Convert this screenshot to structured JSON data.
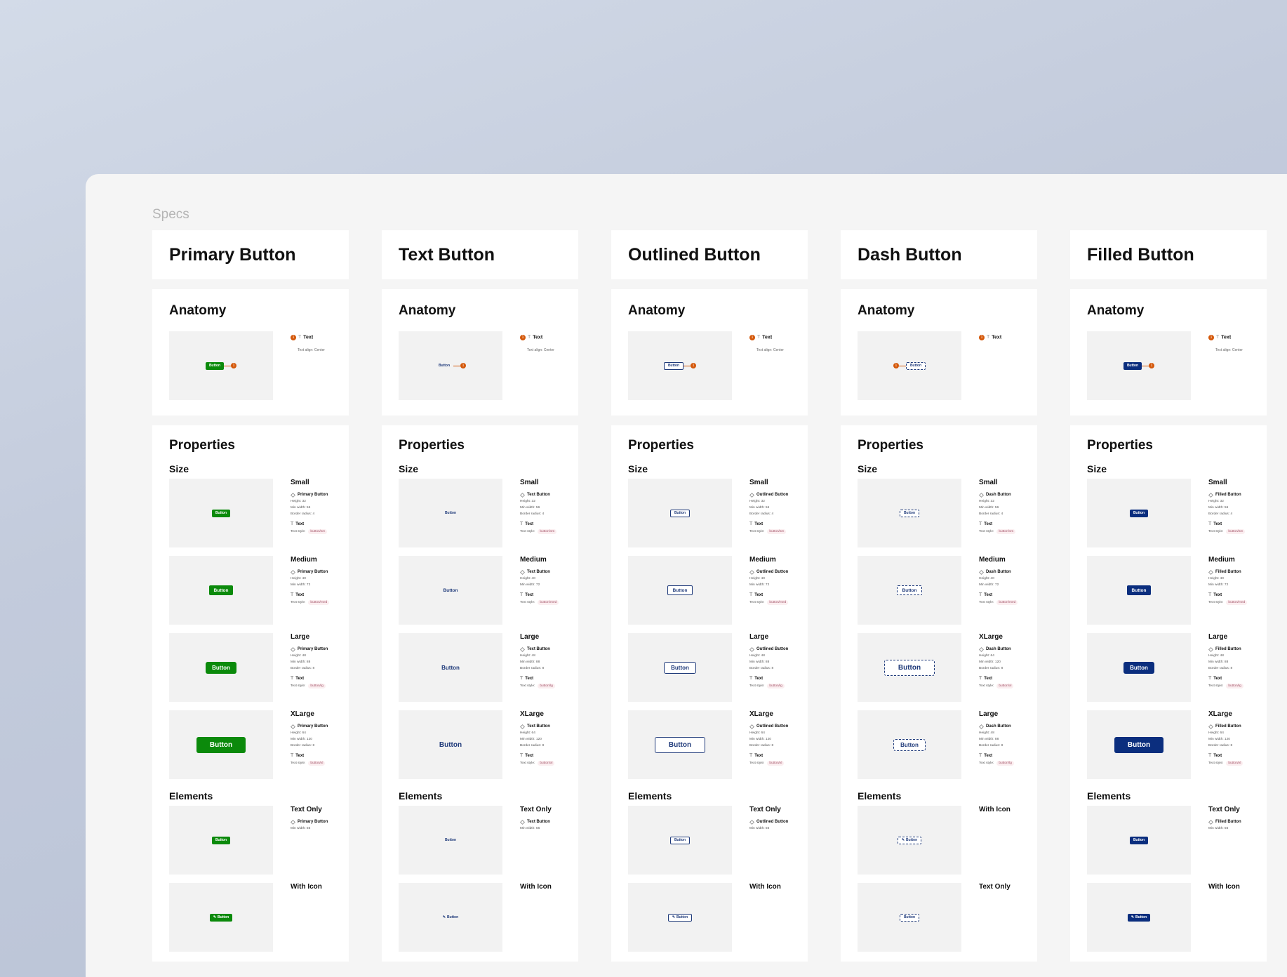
{
  "page": {
    "section_label": "Specs"
  },
  "colors": {
    "primary": "#0b8a0b",
    "navy": "#0b2e7e",
    "marker": "#d4580a",
    "panel": "#f5f5f5"
  },
  "labels": {
    "anatomy": "Anatomy",
    "properties": "Properties",
    "size": "Size",
    "elements": "Elements",
    "text": "Text",
    "text_style": "Text style:",
    "button": "Button"
  },
  "columns": [
    {
      "title": "Primary Button",
      "variant": "primary",
      "anatomy": {
        "marker": "1",
        "label": "Text",
        "sub": "Text align: Center",
        "marker_side": "right"
      },
      "sizes": [
        {
          "name": "Small",
          "size": "sm",
          "component": "Primary Button",
          "specs": [
            "Height: 32",
            "Min width: 56",
            "Border radius: 4"
          ],
          "style": "button/sm"
        },
        {
          "name": "Medium",
          "size": "med",
          "component": "Primary Button",
          "specs": [
            "Height: 40",
            "Min width: 72"
          ],
          "style": "button/med"
        },
        {
          "name": "Large",
          "size": "lg",
          "component": "Primary Button",
          "specs": [
            "Height: 48",
            "Min width: 88",
            "Border radius: 8"
          ],
          "style": "button/lg"
        },
        {
          "name": "XLarge",
          "size": "xl",
          "component": "Primary Button",
          "specs": [
            "Height: 64",
            "Min width: 120",
            "Border radius: 8"
          ],
          "style": "button/xl"
        }
      ],
      "elements": [
        {
          "name": "Text Only",
          "icon": false,
          "component": "Primary Button",
          "specs": [
            "Min width: 56"
          ]
        },
        {
          "name": "With Icon",
          "icon": true
        }
      ]
    },
    {
      "title": "Text Button",
      "variant": "text",
      "anatomy": {
        "marker": "1",
        "label": "Text",
        "sub": "Text align: Center",
        "marker_side": "right"
      },
      "sizes": [
        {
          "name": "Small",
          "size": "sm",
          "component": "Text Button",
          "specs": [
            "Height: 32",
            "Min width: 56",
            "Border radius: 4"
          ],
          "style": "button/sm"
        },
        {
          "name": "Medium",
          "size": "med",
          "component": "Text Button",
          "specs": [
            "Height: 40",
            "Min width: 72"
          ],
          "style": "button/med"
        },
        {
          "name": "Large",
          "size": "lg",
          "component": "Text Button",
          "specs": [
            "Height: 48",
            "Min width: 88",
            "Border radius: 8"
          ],
          "style": "button/lg"
        },
        {
          "name": "XLarge",
          "size": "xl",
          "component": "Text Button",
          "specs": [
            "Height: 64",
            "Min width: 120",
            "Border radius: 8"
          ],
          "style": "button/xl"
        }
      ],
      "elements": [
        {
          "name": "Text Only",
          "icon": false,
          "component": "Text Button",
          "specs": [
            "Min width: 56"
          ]
        },
        {
          "name": "With Icon",
          "icon": true
        }
      ]
    },
    {
      "title": "Outlined Button",
      "variant": "outlined",
      "anatomy": {
        "marker": "1",
        "label": "Text",
        "sub": "Text align: Center",
        "marker_side": "right"
      },
      "sizes": [
        {
          "name": "Small",
          "size": "sm",
          "component": "Outlined Button",
          "specs": [
            "Height: 32",
            "Min width: 56",
            "Border radius: 4"
          ],
          "style": "button/sm"
        },
        {
          "name": "Medium",
          "size": "med",
          "component": "Outlined Button",
          "specs": [
            "Height: 40",
            "Min width: 72"
          ],
          "style": "button/med"
        },
        {
          "name": "Large",
          "size": "lg",
          "component": "Outlined Button",
          "specs": [
            "Height: 48",
            "Min width: 88",
            "Border radius: 8"
          ],
          "style": "button/lg"
        },
        {
          "name": "XLarge",
          "size": "xl",
          "component": "Outlined Button",
          "specs": [
            "Height: 64",
            "Min width: 120",
            "Border radius: 8"
          ],
          "style": "button/xl"
        }
      ],
      "elements": [
        {
          "name": "Text Only",
          "icon": false,
          "component": "Outlined Button",
          "specs": [
            "Min width: 56"
          ]
        },
        {
          "name": "With Icon",
          "icon": true
        }
      ]
    },
    {
      "title": "Dash Button",
      "variant": "dash",
      "anatomy": {
        "marker": "1",
        "label": "Text",
        "sub": "",
        "marker_side": "left"
      },
      "sizes": [
        {
          "name": "Small",
          "size": "sm",
          "component": "Dash Button",
          "specs": [
            "Height: 32",
            "Min width: 56",
            "Border radius: 4"
          ],
          "style": "button/sm"
        },
        {
          "name": "Medium",
          "size": "med",
          "component": "Dash Button",
          "specs": [
            "Height: 40",
            "Min width: 72"
          ],
          "style": "button/med"
        },
        {
          "name": "XLarge",
          "size": "xl",
          "component": "Dash Button",
          "specs": [
            "Height: 64",
            "Min width: 120",
            "Border radius: 8"
          ],
          "style": "button/xl"
        },
        {
          "name": "Large",
          "size": "lg",
          "component": "Dash Button",
          "specs": [
            "Height: 48",
            "Min width: 88",
            "Border radius: 8"
          ],
          "style": "button/lg"
        }
      ],
      "elements": [
        {
          "name": "With Icon",
          "icon": true
        },
        {
          "name": "Text Only",
          "icon": false
        }
      ]
    },
    {
      "title": "Filled Button",
      "variant": "filled",
      "anatomy": {
        "marker": "1",
        "label": "Text",
        "sub": "Text align: Center",
        "marker_side": "right"
      },
      "sizes": [
        {
          "name": "Small",
          "size": "sm",
          "component": "Filled Button",
          "specs": [
            "Height: 32",
            "Min width: 56",
            "Border radius: 4"
          ],
          "style": "button/sm"
        },
        {
          "name": "Medium",
          "size": "med",
          "component": "Filled Button",
          "specs": [
            "Height: 40",
            "Min width: 72"
          ],
          "style": "button/med"
        },
        {
          "name": "Large",
          "size": "lg",
          "component": "Filled Button",
          "specs": [
            "Height: 48",
            "Min width: 88",
            "Border radius: 8"
          ],
          "style": "button/lg"
        },
        {
          "name": "XLarge",
          "size": "xl",
          "component": "Filled Button",
          "specs": [
            "Height: 64",
            "Min width: 120",
            "Border radius: 8"
          ],
          "style": "button/xl"
        }
      ],
      "elements": [
        {
          "name": "Text Only",
          "icon": false,
          "component": "Filled Button",
          "specs": [
            "Min width: 56"
          ]
        },
        {
          "name": "With Icon",
          "icon": true
        }
      ]
    }
  ]
}
